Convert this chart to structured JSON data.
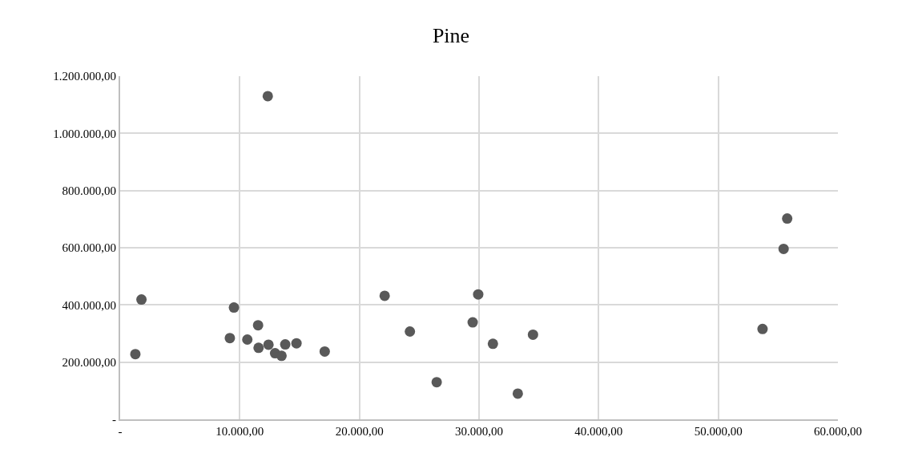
{
  "chart_data": {
    "type": "scatter",
    "title": "Pine",
    "x": [
      12340,
      1780,
      1270,
      9510,
      11530,
      9170,
      10630,
      11570,
      12400,
      12950,
      13490,
      13800,
      14740,
      17100,
      22110,
      24220,
      26460,
      29930,
      29470,
      31160,
      34510,
      33240,
      55760,
      55460,
      53700
    ],
    "series": [
      {
        "color": "#595959",
        "values": [
          1130000,
          419000,
          228000,
          391000,
          329000,
          284000,
          279000,
          250000,
          261000,
          231000,
          222000,
          262000,
          266000,
          237000,
          432000,
          307000,
          130000,
          437000,
          339000,
          264000,
          296000,
          90000,
          702000,
          596000,
          316000
        ]
      }
    ],
    "xlim": [
      0,
      60000
    ],
    "xticks": [
      {
        "value": 0,
        "label": "-"
      },
      {
        "value": 10000,
        "label": "10.000,00"
      },
      {
        "value": 20000,
        "label": "20.000,00"
      },
      {
        "value": 30000,
        "label": "30.000,00"
      },
      {
        "value": 40000,
        "label": "40.000,00"
      },
      {
        "value": 50000,
        "label": "50.000,00"
      },
      {
        "value": 60000,
        "label": "60.000,00"
      }
    ],
    "ylim": [
      0,
      1200000
    ],
    "yticks": [
      {
        "value": 0,
        "label": "-"
      },
      {
        "value": 200000,
        "label": "200.000,00"
      },
      {
        "value": 400000,
        "label": "400.000,00"
      },
      {
        "value": 600000,
        "label": "600.000,00"
      },
      {
        "value": 800000,
        "label": "800.000,00"
      },
      {
        "value": 1000000,
        "label": "1.000.000,00"
      },
      {
        "value": 1200000,
        "label": "1.200.000,00"
      }
    ],
    "grid": true,
    "marker": "circle"
  }
}
